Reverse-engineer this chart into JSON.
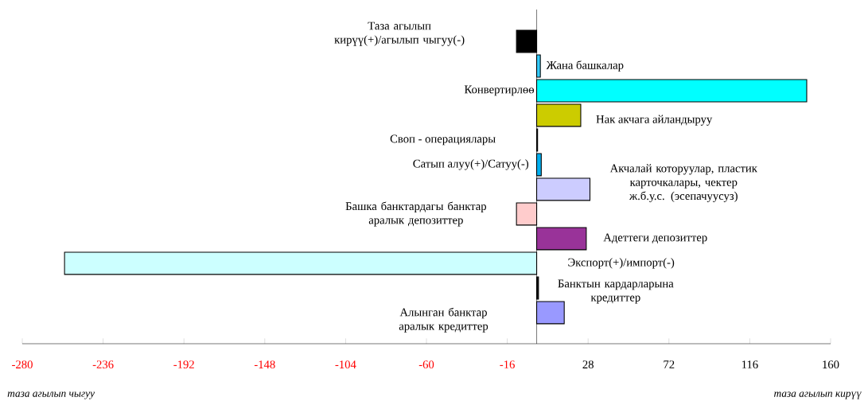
{
  "chart_data": {
    "type": "bar",
    "orientation": "horizontal",
    "categories": [
      "Таза агылып кирүү(+)/агылып чыгуу(-)",
      "Жана башкалар",
      "Конвертирлөө",
      "Нак акчага айландыруу",
      "Своп - операциялары",
      "Сатып алуу(+)/Сатуу(-)",
      "Акчалай которуулар, пластик карточкалары, чектер ж.б.у.с. (эсепачуусуз)",
      "Башка банктардагы банктар аралык депозиттер",
      "Адеттеги депозиттер",
      "Экспорт(+)/импорт(-)",
      "Банктын кардарларына кредиттер",
      "Алынган банктар аралык кредиттер"
    ],
    "values": [
      -11,
      2,
      147,
      24,
      0.5,
      2.5,
      29,
      -11,
      27,
      -257,
      1,
      15
    ],
    "colors": [
      "#000000",
      "#33ccff",
      "#00ffff",
      "#cccc00",
      "#000000",
      "#00b0f0",
      "#ccccff",
      "#ffcccc",
      "#993399",
      "#ccffff",
      "#000000",
      "#9999ff"
    ],
    "xlim": [
      -280,
      160
    ],
    "xticks": [
      -280,
      -236,
      -192,
      -148,
      -104,
      -60,
      -16,
      28,
      72,
      116,
      160
    ],
    "annotations": [
      "таза агылып чыгуу",
      "таза агылып кирүү"
    ]
  }
}
